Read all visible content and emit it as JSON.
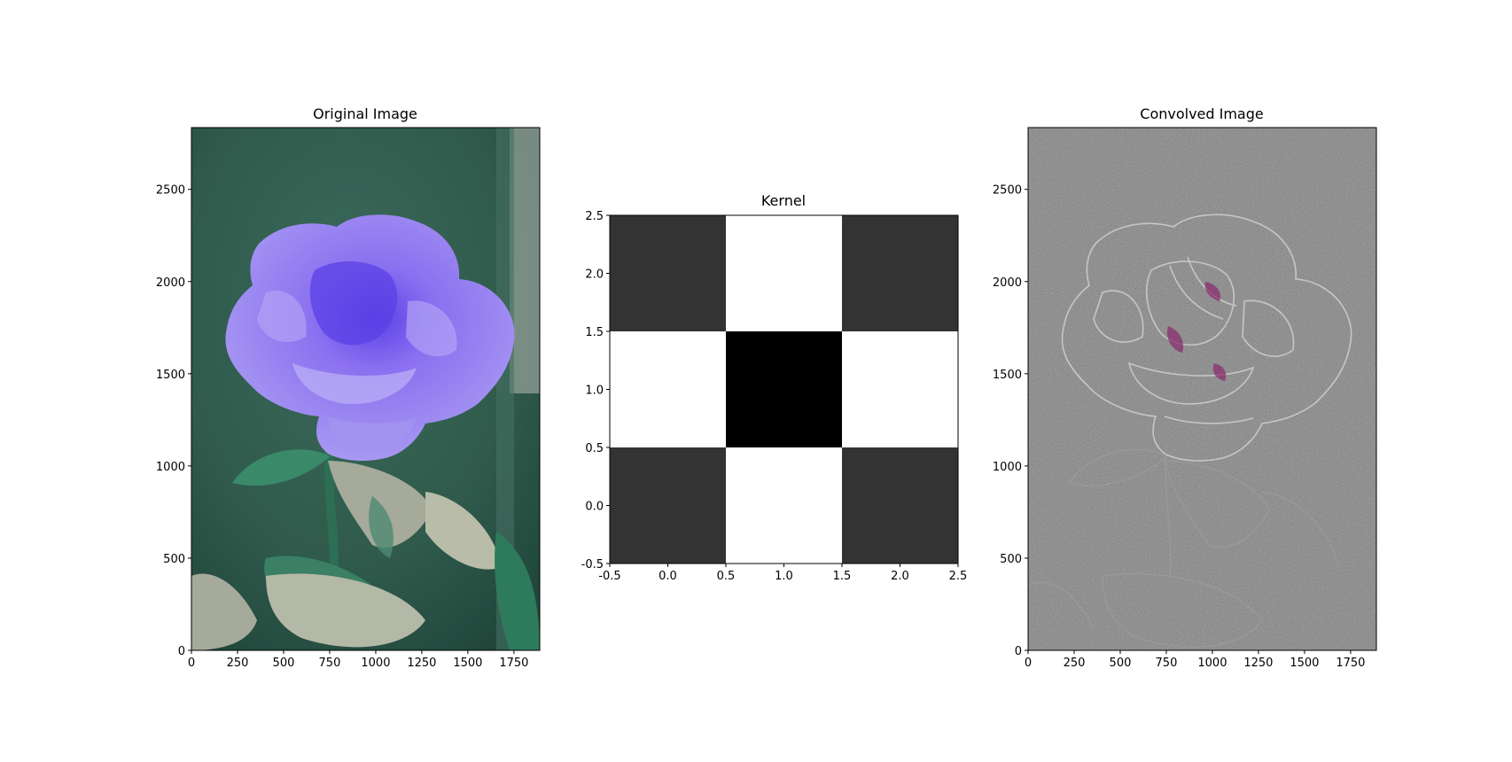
{
  "chart_data": [
    {
      "type": "image",
      "title": "Original Image",
      "xlabel": "",
      "ylabel": "",
      "image_size": {
        "width": 1890,
        "height": 2835
      },
      "xlim": [
        0,
        1890
      ],
      "ylim": [
        2835,
        0
      ],
      "xticks": [
        0,
        250,
        500,
        750,
        1000,
        1250,
        1500,
        1750
      ],
      "yticks": [
        0,
        500,
        1000,
        1500,
        2000,
        2500
      ],
      "colors": {
        "background": "#2f5a4c",
        "flower": "#9a86ee",
        "flower_center": "#5a40e6",
        "leaves": "#3f7f66",
        "pale_leaves": "#a9b0a0"
      }
    },
    {
      "type": "heatmap",
      "title": "Kernel",
      "xlabel": "",
      "ylabel": "",
      "xlim": [
        -0.5,
        2.5
      ],
      "ylim": [
        2.5,
        -0.5
      ],
      "xticks": [
        -0.5,
        0.0,
        0.5,
        1.0,
        1.5,
        2.0,
        2.5
      ],
      "yticks": [
        -0.5,
        0.0,
        0.5,
        1.0,
        1.5,
        2.0,
        2.5
      ],
      "cmap": "gray",
      "values": [
        [
          0.2,
          1.0,
          0.2
        ],
        [
          1.0,
          0.0,
          1.0
        ],
        [
          0.2,
          1.0,
          0.2
        ]
      ]
    },
    {
      "type": "image",
      "title": "Convolved Image",
      "xlabel": "",
      "ylabel": "",
      "image_size": {
        "width": 1890,
        "height": 2835
      },
      "xlim": [
        0,
        1890
      ],
      "ylim": [
        2835,
        0
      ],
      "xticks": [
        0,
        250,
        500,
        750,
        1000,
        1250,
        1500,
        1750
      ],
      "yticks": [
        0,
        500,
        1000,
        1500,
        2000,
        2500
      ],
      "colors": {
        "background": "#5a5a5a",
        "edges": "#d8d8d8",
        "magenta": "#8a2f6e"
      }
    }
  ]
}
